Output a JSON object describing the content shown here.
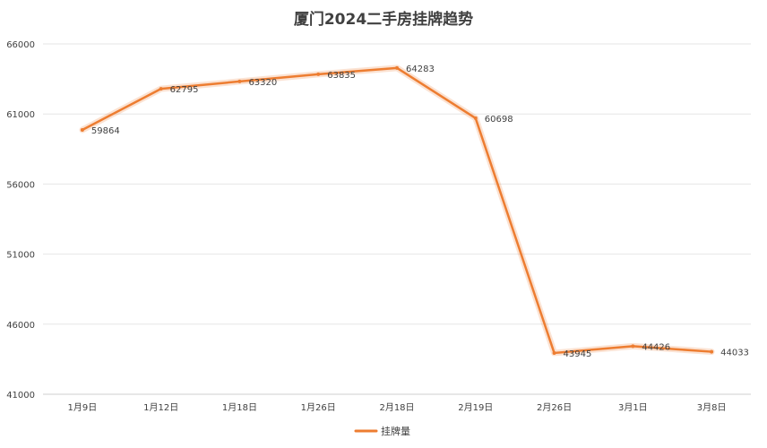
{
  "chart_data": {
    "type": "line",
    "title": "厦门2024二手房挂牌趋势",
    "categories": [
      "1月9日",
      "1月12日",
      "1月18日",
      "1月26日",
      "2月18日",
      "2月19日",
      "2月26日",
      "3月1日",
      "3月8日"
    ],
    "series": [
      {
        "name": "挂牌量",
        "values": [
          59864,
          62795,
          63320,
          63835,
          64283,
          60698,
          43945,
          44426,
          44033
        ],
        "color": "#ED7D31"
      }
    ],
    "ylim": [
      41000,
      66000
    ],
    "yticks": [
      "41000",
      "46000",
      "51000",
      "56000",
      "61000",
      "66000"
    ],
    "grid": true,
    "legend": "bottom",
    "data_labels": true
  }
}
